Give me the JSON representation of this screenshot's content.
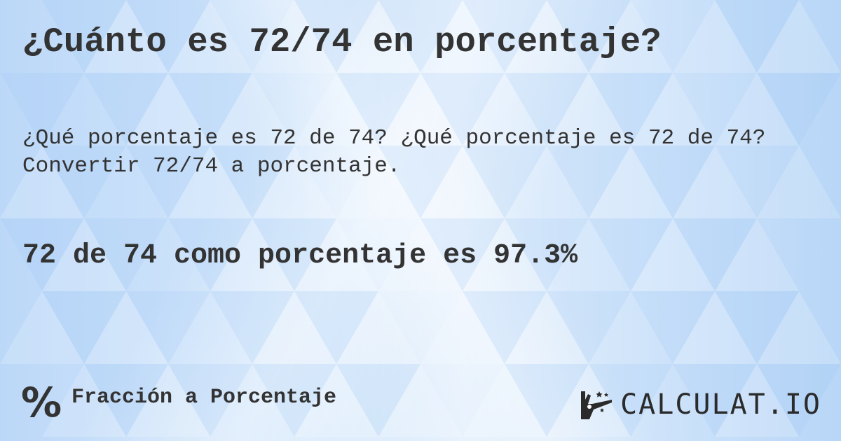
{
  "title": "¿Cuánto es 72/74 en porcentaje?",
  "subtitle_line1": "¿Qué porcentaje es 72 de 74? ¿Qué porcentaje es 72 de 74?",
  "subtitle_line2": "Convertir 72/74 a porcentaje.",
  "result": "72 de 74 como porcentaje es 97.3%",
  "category": {
    "icon": "percent-icon",
    "symbol": "%",
    "label": "Fracción a Porcentaje"
  },
  "logo": {
    "icon": "magic-hand-icon",
    "text": "CALCULAT.IO"
  },
  "colors": {
    "text": "#333333",
    "background": "#cfe3fa"
  }
}
